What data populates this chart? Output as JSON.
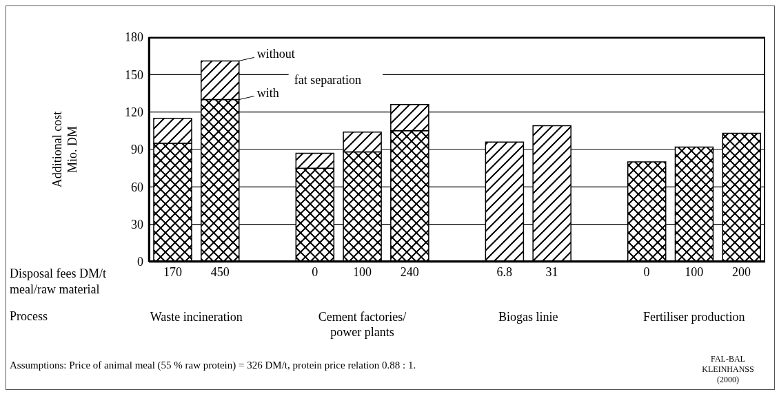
{
  "chart_data": {
    "type": "bar",
    "stacked": true,
    "ylabel": "Additional cost\nMio. DM",
    "xlabel": "Disposal fees DM/t\nmeal/raw material",
    "categories": [
      "170",
      "450",
      null,
      "0",
      "100",
      "240",
      null,
      "6.8",
      "31",
      null,
      "0",
      "100",
      "200"
    ],
    "series": [
      {
        "name": "with",
        "color": "#000000",
        "values": [
          95,
          130,
          null,
          75,
          88,
          105,
          null,
          null,
          null,
          null,
          80,
          92,
          103
        ]
      },
      {
        "name": "without",
        "color": "#000000",
        "values": [
          20,
          31,
          null,
          12,
          16,
          21,
          null,
          96,
          109,
          null,
          null,
          null,
          null
        ]
      }
    ],
    "ylim": [
      0,
      180
    ],
    "yticks": [
      0,
      30,
      60,
      90,
      120,
      150,
      180
    ],
    "grid": "y",
    "annotations": [
      "fat separation",
      "Process",
      "Waste incineration",
      "Cement factories/ power plants",
      "Biogas linie",
      "Fertiliser production",
      "Assumptions: Price of animal meal (55 % raw protein) = 326 DM/t, protein price relation 0.88 : 1.",
      "FAL-BAL KLEINHANSS (2000)"
    ]
  }
}
